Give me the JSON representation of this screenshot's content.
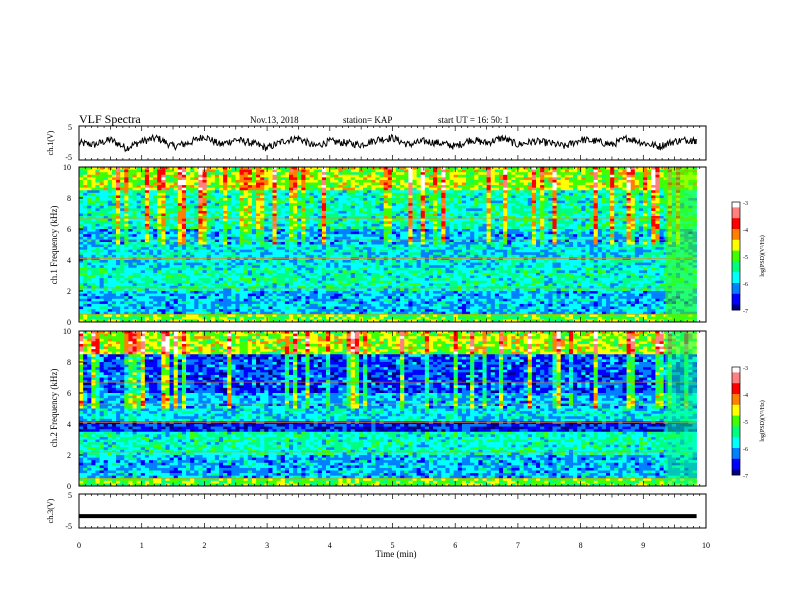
{
  "header": {
    "title": "VLF Spectra",
    "date": "Nov.13, 2018",
    "station": "station= KAP",
    "start": "start  UT =   16: 50: 1"
  },
  "chart_data": [
    {
      "type": "line",
      "panel": "ch1-waveform",
      "ylabel": "ch.1(V)",
      "ylim": [
        -5,
        5
      ],
      "yticks": [
        "5",
        "-5"
      ],
      "x": [
        0.0,
        0.25,
        0.5,
        0.75,
        1.0,
        1.25,
        1.5,
        1.75,
        2.0,
        2.25,
        2.5,
        2.75,
        3.0,
        3.25,
        3.5,
        3.75,
        4.0,
        4.25,
        4.5,
        4.75,
        5.0,
        5.25,
        5.5,
        5.75,
        6.0,
        6.25,
        6.5,
        6.75,
        7.0,
        7.25,
        7.5,
        7.75,
        8.0,
        8.25,
        8.5,
        8.75,
        9.0,
        9.25,
        9.5,
        9.75,
        9.85
      ],
      "y": [
        0.0,
        -0.5,
        1.0,
        -1.5,
        0.5,
        1.5,
        -1.0,
        0.0,
        2.0,
        -0.5,
        1.0,
        0.0,
        -1.5,
        0.5,
        1.5,
        -1.0,
        0.5,
        0.0,
        -0.5,
        1.0,
        1.5,
        -0.5,
        0.5,
        0.0,
        -1.0,
        1.0,
        0.0,
        1.5,
        -0.5,
        0.5,
        0.0,
        -1.0,
        1.0,
        0.5,
        -0.5,
        1.5,
        0.0,
        -1.0,
        0.5,
        1.0,
        0.5
      ]
    },
    {
      "type": "heatmap",
      "panel": "ch1-spectrogram",
      "ylabel": "ch.1 Frequency  (kHz)",
      "ylim": [
        0,
        10
      ],
      "yticks": [
        "10",
        "8",
        "6",
        "4",
        "2",
        "0"
      ],
      "colorbar": {
        "label": "log(PSD)(V²/Hz)",
        "range": [
          -7,
          -3
        ],
        "ticks": [
          "-3",
          "-4",
          "-5",
          "-6",
          "-7"
        ]
      }
    },
    {
      "type": "heatmap",
      "panel": "ch2-spectrogram",
      "ylabel": "ch.2 Frequency  (kHz)",
      "ylim": [
        0,
        10
      ],
      "yticks": [
        "10",
        "8",
        "6",
        "4",
        "2",
        "0"
      ],
      "colorbar": {
        "label": "log(PSD)(V²/Hz)",
        "range": [
          -7,
          -3
        ],
        "ticks": [
          "-3",
          "-4",
          "-5",
          "-6",
          "-7"
        ]
      }
    },
    {
      "type": "line",
      "panel": "ch3-waveform",
      "ylabel": "ch.3(V)",
      "ylim": [
        -5,
        5
      ],
      "yticks": [
        "5",
        "-5"
      ],
      "x": [
        0,
        9.85
      ],
      "y": [
        -1.5,
        -1.5
      ]
    }
  ],
  "xaxis": {
    "label": "Time  (min)",
    "range": [
      0,
      10
    ],
    "ticks": [
      "0",
      "1",
      "2",
      "3",
      "4",
      "5",
      "6",
      "7",
      "8",
      "9",
      "10"
    ]
  },
  "colormap": [
    "#000080",
    "#0000ff",
    "#0080ff",
    "#00ffff",
    "#00ff80",
    "#40ff00",
    "#ffff00",
    "#ff8000",
    "#ff0000",
    "#ff8080",
    "#ffffff"
  ]
}
